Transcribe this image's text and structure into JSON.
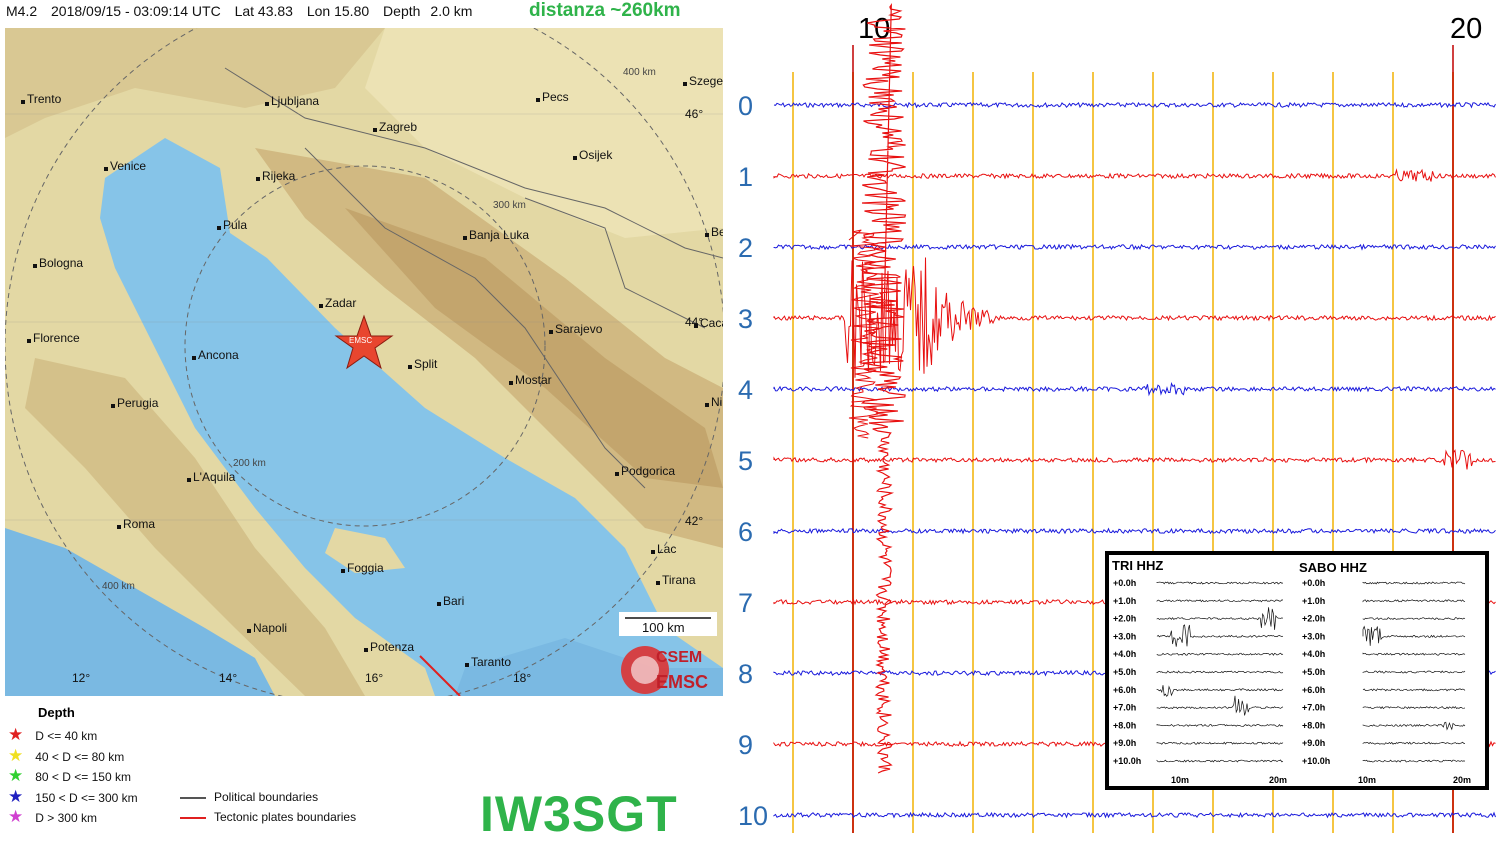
{
  "header": {
    "magnitude": "M4.2",
    "datetime": "2018/09/15 - 03:09:14 UTC",
    "lat": "Lat 43.83",
    "lon": "Lon 15.80",
    "depth": "Depth",
    "depth_value": "2.0 km",
    "distance": "distanza ~260km"
  },
  "map": {
    "cities": [
      {
        "name": "Trento"
      },
      {
        "name": "Ljubljana"
      },
      {
        "name": "Pecs"
      },
      {
        "name": "Szeged"
      },
      {
        "name": "Zagreb"
      },
      {
        "name": "Osijek"
      },
      {
        "name": "Venice"
      },
      {
        "name": "Rijeka"
      },
      {
        "name": "Pula"
      },
      {
        "name": "Banja Luka"
      },
      {
        "name": "Be"
      },
      {
        "name": "Bologna"
      },
      {
        "name": "Zadar"
      },
      {
        "name": "Sarajevo"
      },
      {
        "name": "Caca"
      },
      {
        "name": "Florence"
      },
      {
        "name": "Ancona"
      },
      {
        "name": "Split"
      },
      {
        "name": "Mostar"
      },
      {
        "name": "Perugia"
      },
      {
        "name": "Ni"
      },
      {
        "name": "L'Aquila"
      },
      {
        "name": "Podgorica"
      },
      {
        "name": "Roma"
      },
      {
        "name": "Lac"
      },
      {
        "name": "Foggia"
      },
      {
        "name": "Tirana"
      },
      {
        "name": "Bari"
      },
      {
        "name": "Napoli"
      },
      {
        "name": "Potenza"
      },
      {
        "name": "Taranto"
      }
    ],
    "range_labels": [
      "400 km",
      "300 km",
      "200 km",
      "400 km"
    ],
    "lat_labels": [
      "46°",
      "44°",
      "42°"
    ],
    "lon_labels": [
      "12°",
      "14°",
      "16°",
      "18°"
    ],
    "epicenter_label": "EMSC",
    "scale": "100 km",
    "logo_top": "CSEM",
    "logo_bottom": "EMSC",
    "colors": {
      "sea": "#86c4e8",
      "land": "#e3d8a4",
      "star": "#e8462f"
    }
  },
  "legend": {
    "title": "Depth",
    "items": [
      {
        "label": "D <= 40 km",
        "color": "#e02020"
      },
      {
        "label": "40 < D <= 80 km",
        "color": "#f0e020"
      },
      {
        "label": "80 < D <= 150 km",
        "color": "#30d030"
      },
      {
        "label": "150 < D <= 300 km",
        "color": "#2020c0"
      },
      {
        "label": "D > 300 km",
        "color": "#d040d0"
      }
    ],
    "lines": [
      {
        "label": "Political boundaries",
        "color": "#555555"
      },
      {
        "label": "Tectonic plates boundaries",
        "color": "#e02020"
      }
    ]
  },
  "callsign": "IW3SGT",
  "seismogram": {
    "row_labels": [
      "0",
      "1",
      "2",
      "3",
      "4",
      "5",
      "6",
      "7",
      "8",
      "9",
      "10"
    ],
    "minute_labels": [
      "10",
      "20"
    ],
    "colors": {
      "even": "#1a1adc",
      "odd": "#e81010",
      "grid": "#f5c542",
      "marker": "#c00000"
    }
  },
  "inset": {
    "left_title": "TRI HHZ",
    "right_title": "SABO HHZ",
    "hours": [
      "+0.0h",
      "+1.0h",
      "+2.0h",
      "+3.0h",
      "+4.0h",
      "+5.0h",
      "+6.0h",
      "+7.0h",
      "+8.0h",
      "+9.0h",
      "+10.0h"
    ],
    "x_labels": [
      "10m",
      "20m"
    ]
  }
}
